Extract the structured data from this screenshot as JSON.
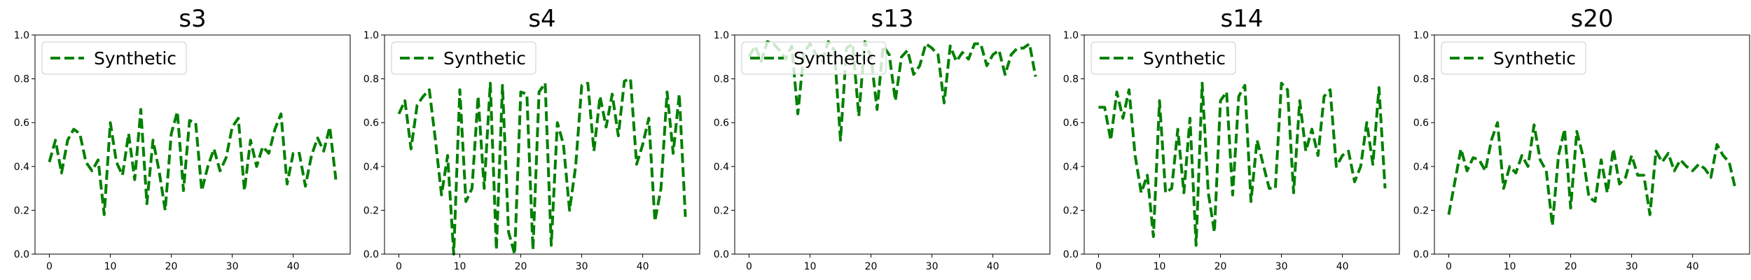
{
  "chart_data": [
    {
      "type": "line",
      "title": "s3",
      "xlim": [
        -2.35,
        49.35
      ],
      "ylim": [
        0.0,
        1.0
      ],
      "xticks": [
        0,
        10,
        20,
        30,
        40
      ],
      "yticks": [
        0.0,
        0.2,
        0.4,
        0.6,
        0.8,
        1.0
      ],
      "legend_position": "upper-left",
      "series": [
        {
          "name": "Synthetic",
          "color": "#008000",
          "style": "dashed",
          "y": [
            0.42,
            0.52,
            0.37,
            0.52,
            0.57,
            0.55,
            0.42,
            0.38,
            0.43,
            0.18,
            0.6,
            0.42,
            0.36,
            0.55,
            0.34,
            0.66,
            0.23,
            0.52,
            0.38,
            0.2,
            0.55,
            0.65,
            0.29,
            0.61,
            0.6,
            0.29,
            0.4,
            0.48,
            0.38,
            0.44,
            0.58,
            0.62,
            0.29,
            0.52,
            0.4,
            0.49,
            0.46,
            0.57,
            0.64,
            0.32,
            0.46,
            0.46,
            0.31,
            0.45,
            0.53,
            0.47,
            0.58,
            0.34
          ]
        }
      ]
    },
    {
      "type": "line",
      "title": "s4",
      "xlim": [
        -2.35,
        49.35
      ],
      "ylim": [
        0.0,
        1.0
      ],
      "xticks": [
        0,
        10,
        20,
        30,
        40
      ],
      "yticks": [
        0.0,
        0.2,
        0.4,
        0.6,
        0.8,
        1.0
      ],
      "legend_position": "upper-left",
      "series": [
        {
          "name": "Synthetic",
          "color": "#008000",
          "style": "dashed",
          "y": [
            0.64,
            0.7,
            0.48,
            0.68,
            0.72,
            0.75,
            0.52,
            0.27,
            0.45,
            0.0,
            0.75,
            0.24,
            0.3,
            0.72,
            0.3,
            0.78,
            0.02,
            0.77,
            0.1,
            0.0,
            0.74,
            0.73,
            0.02,
            0.74,
            0.78,
            0.04,
            0.6,
            0.5,
            0.2,
            0.4,
            0.77,
            0.78,
            0.47,
            0.72,
            0.58,
            0.73,
            0.54,
            0.79,
            0.8,
            0.41,
            0.5,
            0.62,
            0.15,
            0.3,
            0.74,
            0.46,
            0.73,
            0.17
          ]
        }
      ]
    },
    {
      "type": "line",
      "title": "s13",
      "xlim": [
        -2.35,
        49.35
      ],
      "ylim": [
        0.0,
        1.0
      ],
      "xticks": [
        0,
        10,
        20,
        30,
        40
      ],
      "yticks": [
        0.0,
        0.2,
        0.4,
        0.6,
        0.8,
        1.0
      ],
      "legend_position": "upper-left",
      "series": [
        {
          "name": "Synthetic",
          "color": "#008000",
          "style": "dashed",
          "y": [
            0.9,
            0.95,
            0.88,
            0.97,
            0.96,
            0.93,
            0.89,
            0.95,
            0.64,
            0.92,
            0.96,
            0.91,
            0.88,
            0.97,
            0.93,
            0.52,
            0.94,
            0.96,
            0.63,
            0.97,
            0.9,
            0.66,
            0.95,
            0.91,
            0.7,
            0.9,
            0.93,
            0.82,
            0.86,
            0.96,
            0.94,
            0.91,
            0.69,
            0.95,
            0.88,
            0.92,
            0.89,
            0.96,
            0.96,
            0.86,
            0.91,
            0.93,
            0.82,
            0.91,
            0.94,
            0.94,
            0.96,
            0.81
          ]
        }
      ]
    },
    {
      "type": "line",
      "title": "s14",
      "xlim": [
        -2.35,
        49.35
      ],
      "ylim": [
        0.0,
        1.0
      ],
      "xticks": [
        0,
        10,
        20,
        30,
        40
      ],
      "yticks": [
        0.0,
        0.2,
        0.4,
        0.6,
        0.8,
        1.0
      ],
      "legend_position": "upper-left",
      "series": [
        {
          "name": "Synthetic",
          "color": "#008000",
          "style": "dashed",
          "y": [
            0.67,
            0.67,
            0.52,
            0.74,
            0.62,
            0.75,
            0.45,
            0.28,
            0.36,
            0.08,
            0.7,
            0.28,
            0.3,
            0.57,
            0.28,
            0.62,
            0.04,
            0.78,
            0.28,
            0.1,
            0.7,
            0.74,
            0.27,
            0.72,
            0.77,
            0.24,
            0.52,
            0.41,
            0.3,
            0.3,
            0.78,
            0.75,
            0.28,
            0.7,
            0.47,
            0.57,
            0.45,
            0.72,
            0.75,
            0.4,
            0.45,
            0.47,
            0.33,
            0.4,
            0.6,
            0.41,
            0.76,
            0.3
          ]
        }
      ]
    },
    {
      "type": "line",
      "title": "s20",
      "xlim": [
        -2.35,
        49.35
      ],
      "ylim": [
        0.0,
        1.0
      ],
      "xticks": [
        0,
        10,
        20,
        30,
        40
      ],
      "yticks": [
        0.0,
        0.2,
        0.4,
        0.6,
        0.8,
        1.0
      ],
      "legend_position": "upper-left",
      "series": [
        {
          "name": "Synthetic",
          "color": "#008000",
          "style": "dashed",
          "y": [
            0.18,
            0.33,
            0.48,
            0.38,
            0.44,
            0.43,
            0.38,
            0.52,
            0.6,
            0.3,
            0.4,
            0.37,
            0.45,
            0.4,
            0.59,
            0.43,
            0.38,
            0.13,
            0.45,
            0.57,
            0.21,
            0.56,
            0.45,
            0.26,
            0.24,
            0.43,
            0.28,
            0.48,
            0.32,
            0.35,
            0.45,
            0.36,
            0.36,
            0.18,
            0.47,
            0.42,
            0.46,
            0.38,
            0.43,
            0.4,
            0.38,
            0.41,
            0.39,
            0.35,
            0.5,
            0.45,
            0.42,
            0.3
          ]
        }
      ]
    }
  ]
}
